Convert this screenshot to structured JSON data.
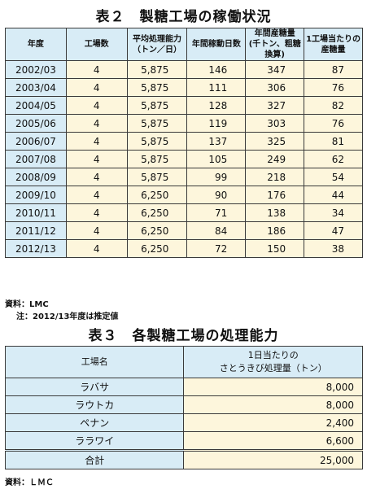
{
  "table1": {
    "title": "表２　製糖工場の稼働状況",
    "headers": [
      "年度",
      "工場数",
      "平均処理能力\n（トン／日）",
      "年間稼動日数",
      "年間産糖量\n(千トン、粗糖換算)",
      "1工場当たりの\n産糖量"
    ],
    "rows": [
      [
        "2002/03",
        "4",
        "5,875",
        "146",
        "347",
        "87"
      ],
      [
        "2003/04",
        "4",
        "5,875",
        "111",
        "306",
        "76"
      ],
      [
        "2004/05",
        "4",
        "5,875",
        "128",
        "327",
        "82"
      ],
      [
        "2005/06",
        "4",
        "5,875",
        "119",
        "303",
        "76"
      ],
      [
        "2006/07",
        "4",
        "5,875",
        "137",
        "325",
        "81"
      ],
      [
        "2007/08",
        "4",
        "5,875",
        "105",
        "249",
        "62"
      ],
      [
        "2008/09",
        "4",
        "5,875",
        "99",
        "218",
        "54"
      ],
      [
        "2009/10",
        "4",
        "6,250",
        "90",
        "176",
        "44"
      ],
      [
        "2010/11",
        "4",
        "6,250",
        "71",
        "138",
        "34"
      ],
      [
        "2011/12",
        "4",
        "6,250",
        "84",
        "186",
        "47"
      ],
      [
        "2012/13",
        "4",
        "6,250",
        "72",
        "150",
        "38"
      ]
    ],
    "source": "資料：LMC",
    "note": "注：2012/13年度は推定値"
  },
  "table2": {
    "title": "表３　各製糖工場の処理能力",
    "headers": [
      "工場名",
      "1日当たりの\nさとうきび処理量（トン）"
    ],
    "rows": [
      [
        "ラバサ",
        "8,000"
      ],
      [
        "ラウトカ",
        "8,000"
      ],
      [
        "ペナン",
        "2,400"
      ],
      [
        "ララワイ",
        "6,600"
      ]
    ],
    "total": [
      "合計",
      "25,000"
    ],
    "source": "資料：ＬＭＣ"
  }
}
